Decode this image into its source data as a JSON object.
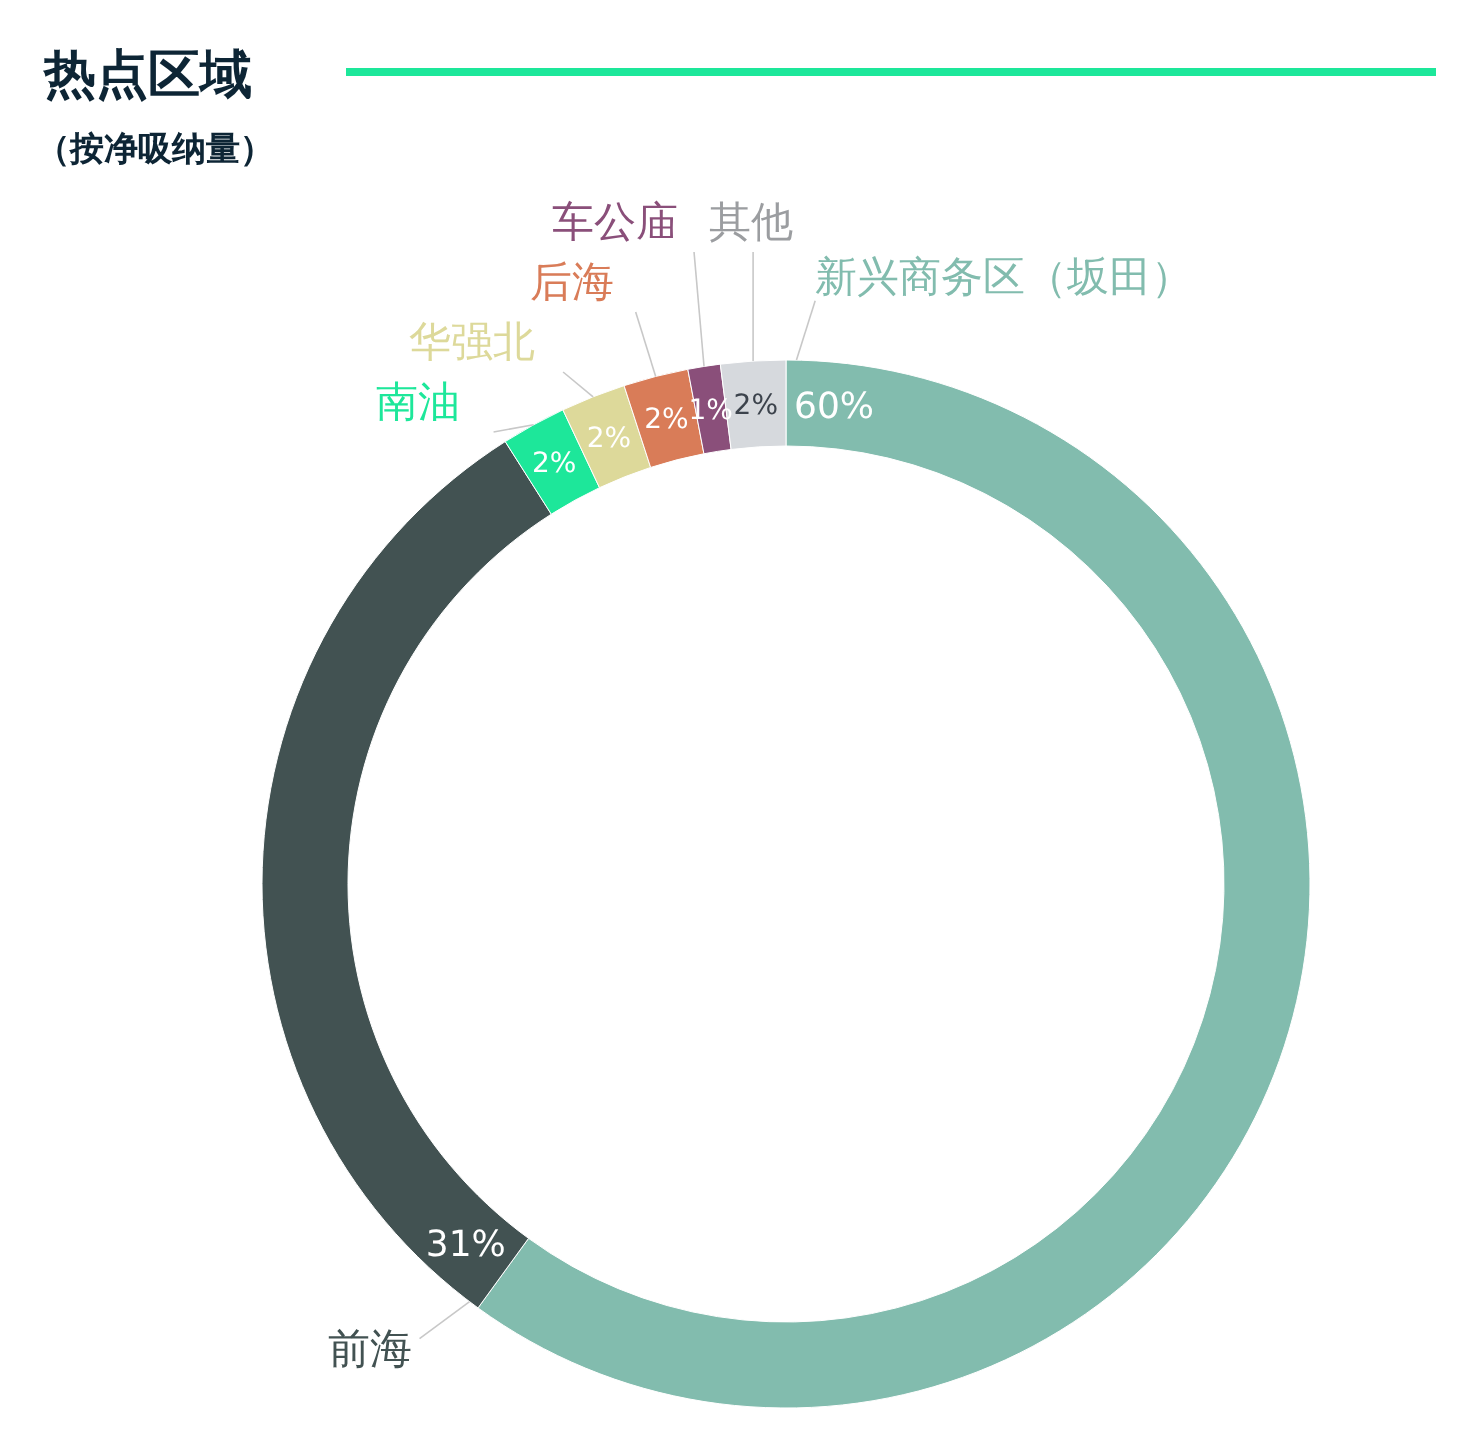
{
  "chart_data": {
    "type": "donut",
    "title": "热点区域",
    "subtitle": "（按净吸纳量）",
    "categories": [
      "新兴商务区（坂田）",
      "前海",
      "南油",
      "华强北",
      "后海",
      "车公庙",
      "其他"
    ],
    "values": [
      60,
      31,
      2,
      2,
      2,
      1,
      2
    ],
    "colors": [
      "#82bcae",
      "#425252",
      "#1de79a",
      "#ddd99a",
      "#d97c58",
      "#8a4f7a",
      "#d6d9dd"
    ],
    "value_labels": [
      "60%",
      "31%",
      "2%",
      "2%",
      "2%",
      "1%",
      "2%"
    ]
  }
}
